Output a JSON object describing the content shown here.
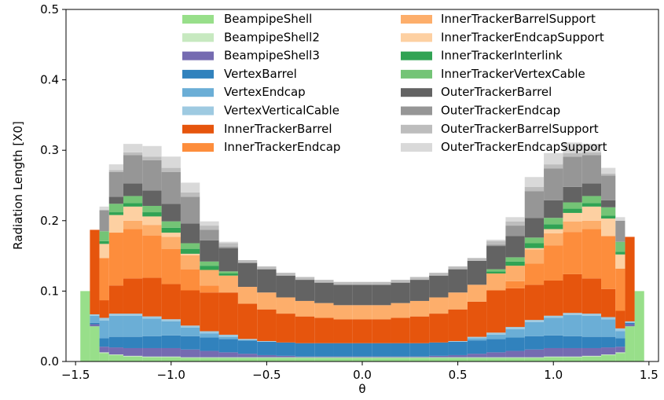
{
  "chart_data": {
    "type": "bar",
    "stacked": true,
    "xlabel": "θ",
    "ylabel": "Radiation Length [X0]",
    "xlim": [
      -1.55,
      1.55
    ],
    "ylim": [
      0,
      0.5
    ],
    "xticks": [
      -1.5,
      -1.0,
      -0.5,
      0.0,
      0.5,
      1.0,
      1.5
    ],
    "xtick_labels": [
      "−1.5",
      "−1.0",
      "−0.5",
      "0.0",
      "0.5",
      "1.0",
      "1.5"
    ],
    "yticks": [
      0.0,
      0.1,
      0.2,
      0.3,
      0.4,
      0.5
    ],
    "ytick_labels": [
      "0.0",
      "0.1",
      "0.2",
      "0.3",
      "0.4",
      "0.5"
    ],
    "legend_position": "top-right",
    "legend_columns": 2,
    "x": [
      -1.5,
      -1.45,
      -1.4,
      -1.35,
      -1.3,
      -1.2,
      -1.1,
      -1.0,
      -0.9,
      -0.8,
      -0.7,
      -0.6,
      -0.5,
      -0.4,
      -0.3,
      -0.2,
      -0.1,
      0.0,
      0.1,
      0.2,
      0.3,
      0.4,
      0.5,
      0.6,
      0.7,
      0.8,
      0.9,
      1.0,
      1.1,
      1.2,
      1.3,
      1.35,
      1.4,
      1.45,
      1.5
    ],
    "series": [
      {
        "name": "BeampipeShell",
        "color": "#98df8a",
        "values": [
          0,
          0.1,
          0.05,
          0.012,
          0.009,
          0.007,
          0.006,
          0.006,
          0.005,
          0.005,
          0.005,
          0.005,
          0.005,
          0.005,
          0.005,
          0.005,
          0.005,
          0.005,
          0.005,
          0.005,
          0.005,
          0.005,
          0.005,
          0.005,
          0.005,
          0.005,
          0.005,
          0.006,
          0.006,
          0.007,
          0.009,
          0.012,
          0.05,
          0.1,
          0
        ]
      },
      {
        "name": "BeampipeShell2",
        "color": "#c7e9c0",
        "values": [
          0,
          0,
          0,
          0.001,
          0.001,
          0.001,
          0.001,
          0.001,
          0.001,
          0.001,
          0.001,
          0.001,
          0.001,
          0.001,
          0.001,
          0.001,
          0.001,
          0.001,
          0.001,
          0.001,
          0.001,
          0.001,
          0.001,
          0.001,
          0.001,
          0.001,
          0.001,
          0.001,
          0.001,
          0.001,
          0.001,
          0.001,
          0,
          0,
          0
        ]
      },
      {
        "name": "BeampipeShell3",
        "color": "#756bb1",
        "values": [
          0,
          0,
          0.003,
          0.008,
          0.01,
          0.011,
          0.012,
          0.012,
          0.011,
          0.009,
          0.007,
          0.005,
          0.003,
          0.002,
          0.001,
          0.001,
          0.001,
          0.001,
          0.001,
          0.001,
          0.001,
          0.002,
          0.003,
          0.005,
          0.007,
          0.009,
          0.011,
          0.012,
          0.012,
          0.011,
          0.01,
          0.008,
          0.003,
          0,
          0
        ]
      },
      {
        "name": "VertexBarrel",
        "color": "#3182bd",
        "values": [
          0,
          0,
          0.002,
          0.012,
          0.015,
          0.016,
          0.017,
          0.018,
          0.019,
          0.019,
          0.019,
          0.019,
          0.019,
          0.019,
          0.019,
          0.019,
          0.019,
          0.019,
          0.019,
          0.019,
          0.019,
          0.019,
          0.019,
          0.019,
          0.019,
          0.019,
          0.019,
          0.018,
          0.017,
          0.016,
          0.015,
          0.012,
          0.002,
          0,
          0
        ]
      },
      {
        "name": "VertexEndcap",
        "color": "#6baed6",
        "values": [
          0,
          0,
          0.01,
          0.025,
          0.03,
          0.03,
          0.025,
          0.02,
          0.012,
          0.006,
          0.003,
          0,
          0,
          0,
          0,
          0,
          0,
          0,
          0,
          0,
          0,
          0,
          0,
          0.003,
          0.006,
          0.012,
          0.02,
          0.025,
          0.03,
          0.03,
          0.025,
          0.01,
          0,
          0,
          0
        ]
      },
      {
        "name": "VertexVerticalCable",
        "color": "#9ecae1",
        "values": [
          0,
          0,
          0.002,
          0.004,
          0.003,
          0.003,
          0.003,
          0.003,
          0.003,
          0.003,
          0.003,
          0.002,
          0.001,
          0,
          0,
          0,
          0,
          0,
          0,
          0,
          0,
          0,
          0.001,
          0.002,
          0.003,
          0.003,
          0.003,
          0.003,
          0.003,
          0.003,
          0.003,
          0.004,
          0.002,
          0,
          0
        ]
      },
      {
        "name": "InnerTrackerBarrel",
        "color": "#e6550d",
        "values": [
          0,
          0,
          0.12,
          0.025,
          0.04,
          0.05,
          0.055,
          0.05,
          0.05,
          0.055,
          0.06,
          0.05,
          0.045,
          0.041,
          0.038,
          0.036,
          0.034,
          0.034,
          0.034,
          0.036,
          0.038,
          0.041,
          0.045,
          0.05,
          0.06,
          0.055,
          0.05,
          0.05,
          0.055,
          0.05,
          0.04,
          0.025,
          0.12,
          0,
          0
        ]
      },
      {
        "name": "InnerTrackerEndcap",
        "color": "#fd8d3c",
        "values": [
          0,
          0,
          0,
          0.06,
          0.075,
          0.07,
          0.06,
          0.05,
          0.03,
          0.01,
          0,
          0,
          0,
          0,
          0,
          0,
          0,
          0,
          0,
          0,
          0,
          0,
          0,
          0,
          0,
          0.01,
          0.03,
          0.05,
          0.06,
          0.07,
          0.075,
          0.06,
          0,
          0,
          0
        ]
      },
      {
        "name": "InnerTrackerBarrelSupport",
        "color": "#fdae6b",
        "values": [
          0,
          0,
          0,
          0,
          0,
          0.012,
          0.015,
          0.017,
          0.02,
          0.022,
          0.024,
          0.024,
          0.024,
          0.023,
          0.022,
          0.021,
          0.02,
          0.02,
          0.02,
          0.021,
          0.022,
          0.023,
          0.024,
          0.024,
          0.024,
          0.022,
          0.02,
          0.017,
          0.015,
          0.012,
          0,
          0,
          0,
          0,
          0
        ]
      },
      {
        "name": "InnerTrackerEndcapSupport",
        "color": "#fdd0a2",
        "values": [
          0,
          0,
          0,
          0.02,
          0.025,
          0.02,
          0.012,
          0.006,
          0.002,
          0,
          0,
          0,
          0,
          0,
          0,
          0,
          0,
          0,
          0,
          0,
          0,
          0,
          0,
          0,
          0,
          0,
          0.002,
          0.006,
          0.012,
          0.02,
          0.025,
          0.02,
          0,
          0,
          0
        ]
      },
      {
        "name": "InnerTrackerInterlink",
        "color": "#31a354",
        "values": [
          0,
          0,
          0,
          0.004,
          0.004,
          0.005,
          0.006,
          0.007,
          0.007,
          0.006,
          0.003,
          0,
          0,
          0,
          0,
          0,
          0,
          0,
          0,
          0,
          0,
          0,
          0,
          0,
          0.003,
          0.006,
          0.007,
          0.007,
          0.006,
          0.005,
          0.004,
          0.004,
          0,
          0,
          0
        ]
      },
      {
        "name": "InnerTrackerVertexCable",
        "color": "#74c476",
        "values": [
          0,
          0,
          0,
          0.014,
          0.012,
          0.01,
          0.009,
          0.009,
          0.008,
          0.006,
          0.003,
          0,
          0,
          0,
          0,
          0,
          0,
          0,
          0,
          0,
          0,
          0,
          0,
          0,
          0.003,
          0.006,
          0.008,
          0.009,
          0.009,
          0.01,
          0.012,
          0.014,
          0,
          0,
          0
        ]
      },
      {
        "name": "OuterTrackerBarrel",
        "color": "#636363",
        "values": [
          0,
          0,
          0,
          0,
          0.01,
          0.018,
          0.022,
          0.025,
          0.028,
          0.03,
          0.033,
          0.034,
          0.033,
          0.031,
          0.03,
          0.029,
          0.029,
          0.029,
          0.029,
          0.029,
          0.03,
          0.031,
          0.033,
          0.034,
          0.033,
          0.03,
          0.028,
          0.025,
          0.022,
          0.018,
          0.01,
          0,
          0,
          0,
          0
        ]
      },
      {
        "name": "OuterTrackerEndcap",
        "color": "#969696",
        "values": [
          0,
          0,
          0,
          0.03,
          0.035,
          0.04,
          0.043,
          0.045,
          0.038,
          0.015,
          0.002,
          0,
          0,
          0,
          0,
          0,
          0,
          0,
          0,
          0,
          0,
          0,
          0,
          0,
          0.002,
          0.015,
          0.038,
          0.045,
          0.043,
          0.04,
          0.035,
          0.03,
          0,
          0,
          0
        ]
      },
      {
        "name": "OuterTrackerBarrelSupport",
        "color": "#bdbdbd",
        "values": [
          0,
          0,
          0,
          0,
          0.003,
          0.004,
          0.005,
          0.006,
          0.006,
          0.006,
          0.005,
          0.004,
          0.004,
          0.004,
          0.004,
          0.004,
          0.004,
          0.004,
          0.004,
          0.004,
          0.004,
          0.004,
          0.004,
          0.004,
          0.005,
          0.006,
          0.006,
          0.006,
          0.005,
          0.004,
          0.003,
          0,
          0,
          0,
          0
        ]
      },
      {
        "name": "OuterTrackerEndcapSupport",
        "color": "#d9d9d9",
        "values": [
          0,
          0,
          0,
          0.005,
          0.008,
          0.012,
          0.015,
          0.016,
          0.014,
          0.006,
          0.002,
          0,
          0,
          0,
          0,
          0,
          0,
          0,
          0,
          0,
          0,
          0,
          0,
          0,
          0.002,
          0.006,
          0.014,
          0.016,
          0.015,
          0.012,
          0.008,
          0.005,
          0,
          0,
          0
        ]
      }
    ]
  }
}
